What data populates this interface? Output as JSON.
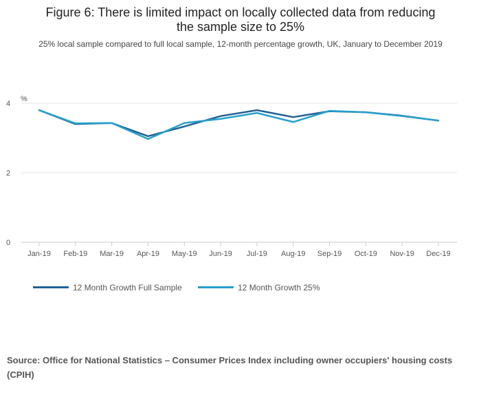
{
  "chart_data": {
    "type": "line",
    "title_lines": [
      "Figure 6: There is limited impact on locally collected data from reducing",
      "the sample size to 25%"
    ],
    "subtitle": "25% local sample compared to full local sample, 12-month percentage growth, UK, January to December 2019",
    "ylabel": "%",
    "ylim": [
      0,
      4.4
    ],
    "yticks": [
      0,
      2,
      4
    ],
    "categories": [
      "Jan-19",
      "Feb-19",
      "Mar-19",
      "Apr-19",
      "May-19",
      "Jun-19",
      "Jul-19",
      "Aug-19",
      "Sep-19",
      "Oct-19",
      "Nov-19",
      "Dec-19"
    ],
    "series": [
      {
        "name": "12 Month Growth Full Sample",
        "color": "#206095",
        "values": [
          3.8,
          3.4,
          3.43,
          3.05,
          3.33,
          3.63,
          3.8,
          3.6,
          3.77,
          3.74,
          3.64,
          3.5
        ]
      },
      {
        "name": "12 Month Growth 25%",
        "color": "#27a0cc",
        "values": [
          3.8,
          3.42,
          3.43,
          2.97,
          3.43,
          3.55,
          3.72,
          3.46,
          3.78,
          3.74,
          3.63,
          3.5
        ]
      }
    ],
    "grid": true,
    "legend": "bottom-left"
  },
  "source": "Source: Office for National Statistics – Consumer Prices Index including owner occupiers' housing costs (CPIH)"
}
